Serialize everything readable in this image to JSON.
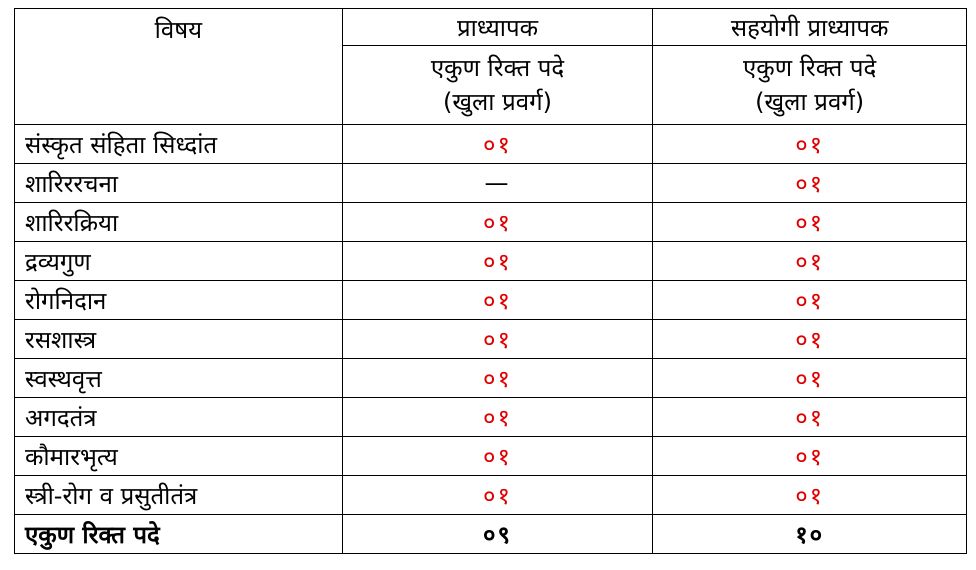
{
  "headers": {
    "subject": "विषय",
    "professor": "प्राध्यापक",
    "associate_professor": "सहयोगी प्राध्यापक",
    "sub_line1": "एकुण रिक्त पदे",
    "sub_line2": "(खुला प्रवर्ग)"
  },
  "rows": [
    {
      "subject": "संस्कृत संहिता सिध्दांत",
      "professor": "०१",
      "associate": "०१"
    },
    {
      "subject": "शारिररचना",
      "professor": "—",
      "associate": "०१"
    },
    {
      "subject": "शारिरक्रिया",
      "professor": "०१",
      "associate": "०१"
    },
    {
      "subject": "द्रव्यगुण",
      "professor": "०१",
      "associate": "०१"
    },
    {
      "subject": "रोगनिदान",
      "professor": "०१",
      "associate": "०१"
    },
    {
      "subject": "रसशास्त्र",
      "professor": "०१",
      "associate": "०१"
    },
    {
      "subject": "स्वस्थवृत्त",
      "professor": "०१",
      "associate": "०१"
    },
    {
      "subject": "अगदतंत्र",
      "professor": "०१",
      "associate": "०१"
    },
    {
      "subject": "कौमारभृत्य",
      "professor": "०१",
      "associate": "०१"
    },
    {
      "subject": "स्त्री-रोग व प्रसुतीतंत्र",
      "professor": "०१",
      "associate": "०१"
    }
  ],
  "total": {
    "label": "एकुण रिक्त पदे",
    "professor": "०९",
    "associate": "१०"
  },
  "colors": {
    "value_red": "#e00000",
    "text": "#000000"
  }
}
